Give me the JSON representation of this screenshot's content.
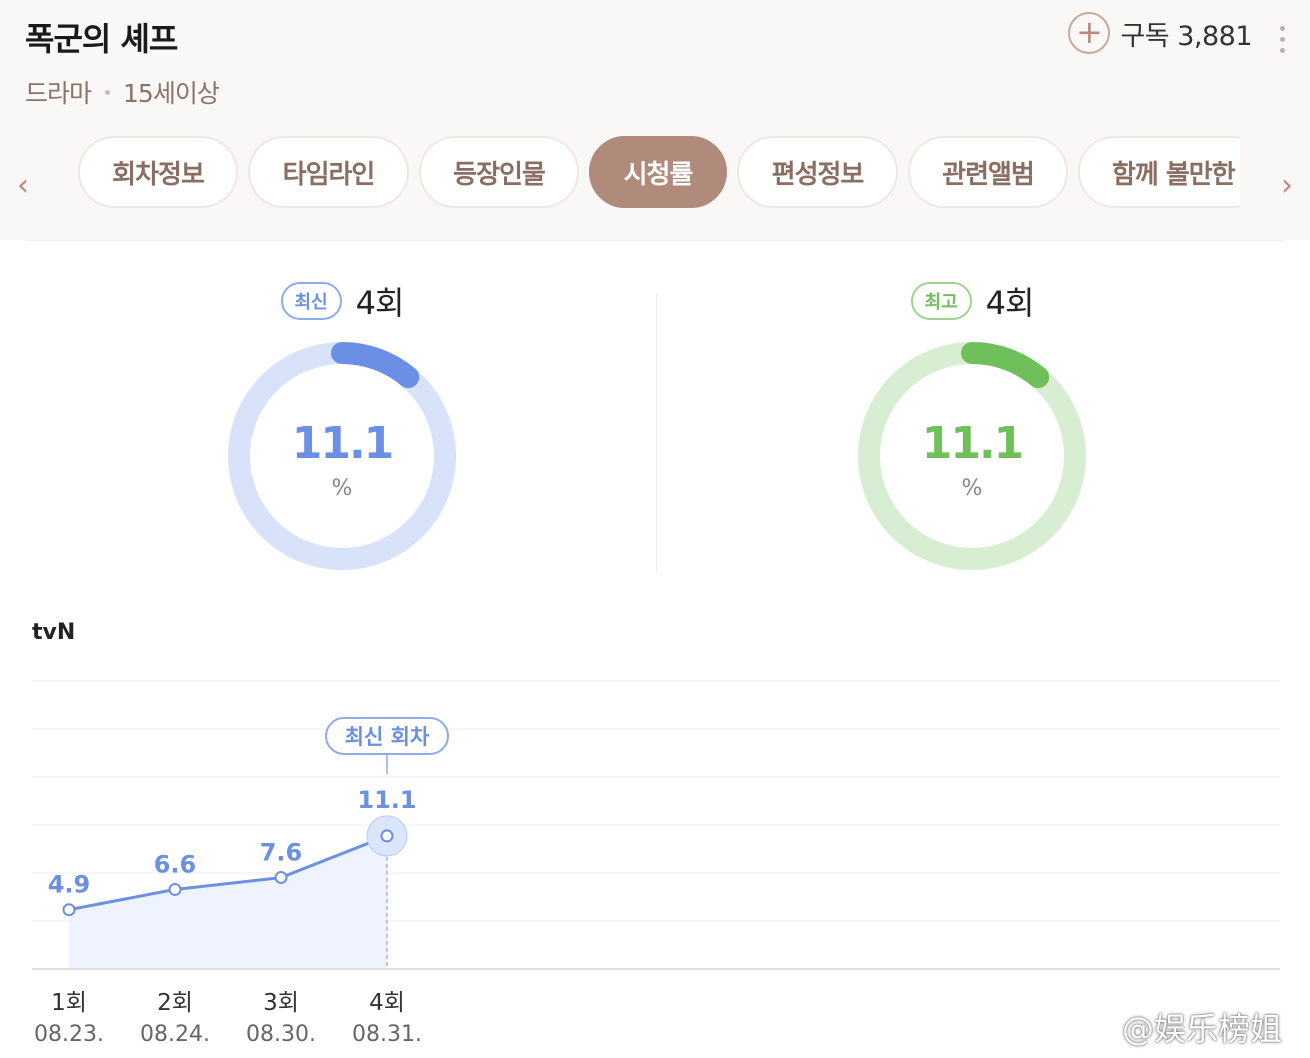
{
  "header": {
    "title": "폭군의 셰프",
    "genre": "드라마",
    "rating": "15세이상",
    "subscribe_label": "구독 3,881"
  },
  "tabs": [
    {
      "label": "회차정보",
      "active": false
    },
    {
      "label": "타임라인",
      "active": false
    },
    {
      "label": "등장인물",
      "active": false
    },
    {
      "label": "시청률",
      "active": true
    },
    {
      "label": "편성정보",
      "active": false
    },
    {
      "label": "관련앨범",
      "active": false
    },
    {
      "label": "함께 볼만한",
      "active": false
    }
  ],
  "stats": {
    "latest": {
      "badge": "최신",
      "episode": "4회",
      "value": "11.1",
      "unit": "%",
      "color": "#6a8fe4",
      "ring_color": "#d8e2f8"
    },
    "best": {
      "badge": "최고",
      "episode": "4회",
      "value": "11.1",
      "unit": "%",
      "color": "#6fbf5b",
      "ring_color": "#d8eed2"
    }
  },
  "network": "tvN",
  "chart_data": {
    "type": "line",
    "categories": [
      "1회",
      "2회",
      "3회",
      "4회"
    ],
    "dates": [
      "08.23.",
      "08.24.",
      "08.30.",
      "08.31."
    ],
    "series": [
      {
        "values": [
          4.9,
          6.6,
          7.6,
          11.1
        ]
      }
    ],
    "value_labels": [
      "4.9",
      "6.6",
      "7.6",
      "11.1"
    ],
    "annotation": "최신 회차",
    "annotated_index": 3,
    "line_color": "#6a8fe4",
    "grid": true
  },
  "watermark": "@娱乐榜姐"
}
